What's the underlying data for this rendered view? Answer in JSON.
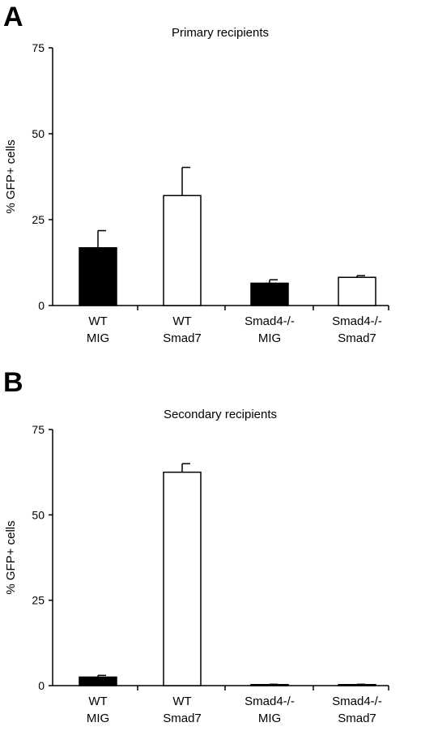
{
  "chart_data": [
    {
      "type": "bar",
      "panel_letter": "A",
      "title": "Primary recipients",
      "ylabel": "% GFP+ cells",
      "xlabel": "",
      "ylim": [
        0,
        75
      ],
      "yticks": [
        0,
        25,
        50,
        75
      ],
      "grid": false,
      "categories": [
        [
          "WT",
          "MIG"
        ],
        [
          "WT",
          "Smad7"
        ],
        [
          "Smad4-/-",
          "MIG"
        ],
        [
          "Smad4-/-",
          "Smad7"
        ]
      ],
      "values": [
        16.8,
        32,
        6.5,
        8.2
      ],
      "errors": [
        5,
        8.2,
        1,
        0.5
      ],
      "fills": [
        "#000000",
        "#ffffff",
        "#000000",
        "#ffffff"
      ]
    },
    {
      "type": "bar",
      "panel_letter": "B",
      "title": "Secondary recipients",
      "ylabel": "% GFP+ cells",
      "xlabel": "",
      "ylim": [
        0,
        75
      ],
      "yticks": [
        0,
        25,
        50,
        75
      ],
      "grid": false,
      "categories": [
        [
          "WT",
          "MIG"
        ],
        [
          "WT",
          "Smad7"
        ],
        [
          "Smad4-/-",
          "MIG"
        ],
        [
          "Smad4-/-",
          "Smad7"
        ]
      ],
      "values": [
        2.5,
        62.5,
        0.3,
        0.3
      ],
      "errors": [
        0.5,
        2.5,
        0.1,
        0.1
      ],
      "fills": [
        "#000000",
        "#ffffff",
        "#000000",
        "#ffffff"
      ]
    }
  ]
}
